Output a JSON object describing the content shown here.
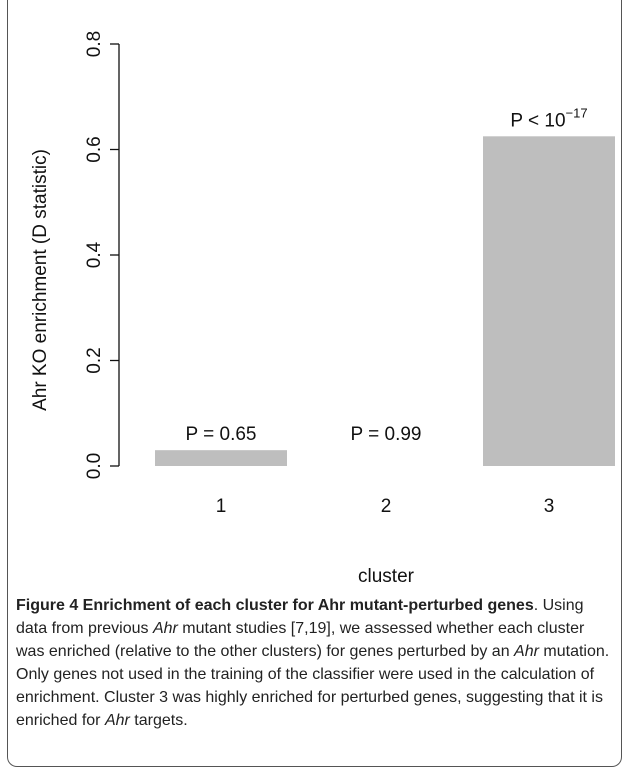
{
  "chart_data": {
    "type": "bar",
    "categories": [
      "1",
      "2",
      "3"
    ],
    "values": [
      0.03,
      0.0,
      0.625
    ],
    "annotations": [
      "P = 0.65",
      "P = 0.99",
      "P < 10"
    ],
    "annotation_superscripts": [
      "",
      "",
      "−17"
    ],
    "ylabel": "Ahr KO enrichment (D statistic)",
    "xlabel": "cluster",
    "ylim": [
      0,
      0.8
    ],
    "yticks": [
      0.0,
      0.2,
      0.4,
      0.6,
      0.8
    ],
    "ytick_labels": [
      "0.0",
      "0.2",
      "0.4",
      "0.6",
      "0.8"
    ],
    "bar_color": "#bebebe",
    "grid": false
  },
  "caption": {
    "title": "Figure 4 Enrichment of each cluster for Ahr mutant-perturbed genes",
    "parts": [
      {
        "text": ". Using data from previous ",
        "italic": false
      },
      {
        "text": "Ahr",
        "italic": true
      },
      {
        "text": " mutant studies [7,19], we assessed whether each cluster was enriched (relative to the other clusters) for genes perturbed by an ",
        "italic": false
      },
      {
        "text": "Ahr",
        "italic": true
      },
      {
        "text": " mutation. Only genes not used in the training of the classifier were used in the calculation of enrichment. Cluster 3 was highly enriched for perturbed genes, suggesting that it is enriched for ",
        "italic": false
      },
      {
        "text": "Ahr",
        "italic": true
      },
      {
        "text": " targets.",
        "italic": false
      }
    ]
  }
}
